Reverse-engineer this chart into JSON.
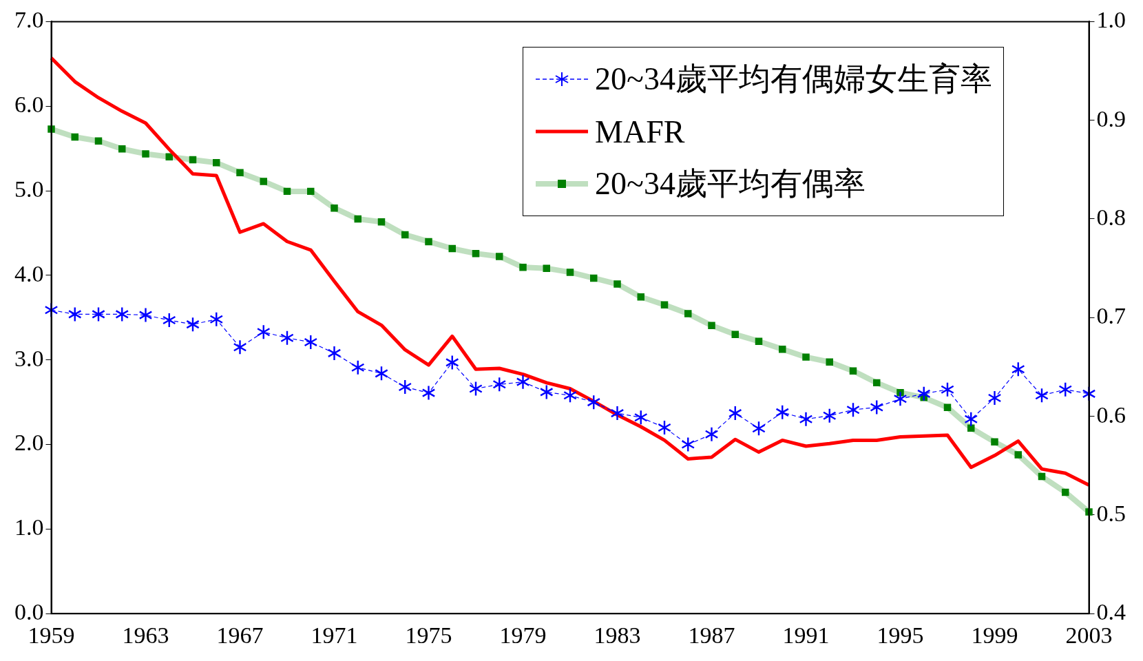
{
  "chart_data": {
    "type": "line",
    "categories": [
      "1959",
      null,
      null,
      null,
      "1963",
      null,
      null,
      null,
      "1967",
      null,
      null,
      null,
      "1971",
      null,
      null,
      null,
      "1975",
      null,
      null,
      null,
      "1979",
      null,
      null,
      null,
      "1983",
      null,
      null,
      null,
      "1987",
      null,
      null,
      null,
      "1991",
      null,
      null,
      null,
      "1995",
      null,
      null,
      null,
      "1999",
      null,
      null,
      null,
      "2003"
    ],
    "series": [
      {
        "name": "20~34歲平均有偶婦女生育率",
        "color": "#0000ff",
        "marker": "cross",
        "line_style": "dashed",
        "values": [
          3.59,
          3.54,
          3.54,
          3.54,
          3.53,
          3.47,
          3.42,
          3.48,
          3.15,
          3.33,
          3.26,
          3.21,
          3.08,
          2.91,
          2.84,
          2.68,
          2.61,
          2.97,
          2.66,
          2.71,
          2.74,
          2.62,
          2.58,
          2.5,
          2.37,
          2.32,
          2.2,
          2.0,
          2.12,
          2.37,
          2.19,
          2.38,
          2.3,
          2.34,
          2.41,
          2.44,
          2.54,
          2.6,
          2.65,
          2.3,
          2.55,
          2.89,
          2.58,
          2.65,
          2.6
        ]
      },
      {
        "name": "MAFR",
        "color": "#ff0000",
        "marker": "none",
        "line_style": "solid",
        "values": [
          6.57,
          6.29,
          6.1,
          5.94,
          5.8,
          5.49,
          5.2,
          5.18,
          4.51,
          4.61,
          4.4,
          4.3,
          3.93,
          3.57,
          3.41,
          3.12,
          2.94,
          3.28,
          2.89,
          2.9,
          2.83,
          2.73,
          2.66,
          2.51,
          2.35,
          2.21,
          2.05,
          1.83,
          1.85,
          2.06,
          1.91,
          2.05,
          1.98,
          2.01,
          2.05,
          2.05,
          2.09,
          2.1,
          2.11,
          1.73,
          1.87,
          2.04,
          1.71,
          1.66,
          1.52
        ]
      },
      {
        "name": "20~34歲平均有偶率",
        "color": "#008000",
        "marker": "square",
        "line_style": "solid",
        "axis": "y2",
        "values": [
          0.891,
          0.883,
          0.879,
          0.871,
          0.866,
          0.863,
          0.86,
          0.857,
          0.847,
          0.838,
          0.828,
          0.828,
          0.811,
          0.8,
          0.797,
          0.784,
          0.777,
          0.77,
          0.765,
          0.762,
          0.751,
          0.75,
          0.746,
          0.74,
          0.734,
          0.721,
          0.713,
          0.704,
          0.692,
          0.683,
          0.676,
          0.668,
          0.66,
          0.655,
          0.646,
          0.634,
          0.624,
          0.619,
          0.609,
          0.588,
          0.574,
          0.561,
          0.539,
          0.523,
          0.503
        ]
      }
    ],
    "ylim": [
      0,
      7
    ],
    "yticks": [
      {
        "value": 0,
        "label": "0.0"
      },
      {
        "value": 1,
        "label": "1.0"
      },
      {
        "value": 2,
        "label": "2.0"
      },
      {
        "value": 3,
        "label": "3.0"
      },
      {
        "value": 4,
        "label": "4.0"
      },
      {
        "value": 5,
        "label": "5.0"
      },
      {
        "value": 6,
        "label": "6.0"
      },
      {
        "value": 7,
        "label": "7.0"
      }
    ],
    "y2lim": [
      0.4,
      1.0
    ],
    "y2ticks": [
      0.4,
      0.5,
      0.6,
      0.7,
      0.8,
      0.9,
      {
        "value": 1.0,
        "label": "1.0"
      }
    ],
    "grid": false,
    "legend": "top right"
  }
}
